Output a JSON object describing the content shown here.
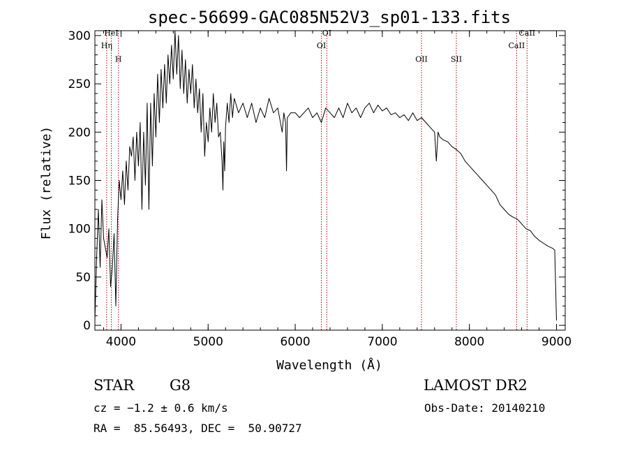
{
  "chart_data": {
    "type": "line",
    "title": "spec-56699-GAC085N52V3_sp01-133.fits",
    "xlabel": "Wavelength (Å)",
    "ylabel": "Flux (relative)",
    "xlim": [
      3700,
      9100
    ],
    "ylim": [
      -5,
      305
    ],
    "xticks": [
      4000,
      5000,
      6000,
      7000,
      8000,
      9000
    ],
    "yticks": [
      0,
      50,
      100,
      150,
      200,
      250,
      300
    ],
    "grid": false,
    "series": [
      {
        "x": [
          3700,
          3720,
          3740,
          3760,
          3780,
          3800,
          3820,
          3840,
          3860,
          3880,
          3900,
          3920,
          3940,
          3960,
          3980,
          4000,
          4020,
          4040,
          4060,
          4080,
          4100,
          4120,
          4140,
          4160,
          4180,
          4200,
          4220,
          4240,
          4260,
          4280,
          4300,
          4320,
          4340,
          4360,
          4380,
          4400,
          4420,
          4440,
          4460,
          4480,
          4500,
          4520,
          4540,
          4560,
          4580,
          4600,
          4620,
          4640,
          4660,
          4680,
          4700,
          4720,
          4740,
          4760,
          4780,
          4800,
          4820,
          4840,
          4860,
          4880,
          4900,
          4920,
          4940,
          4960,
          4980,
          5000,
          5020,
          5040,
          5060,
          5080,
          5100,
          5120,
          5140,
          5160,
          5170,
          5180,
          5190,
          5200,
          5220,
          5240,
          5260,
          5280,
          5300,
          5350,
          5400,
          5450,
          5500,
          5550,
          5600,
          5650,
          5700,
          5750,
          5800,
          5850,
          5870,
          5890,
          5900,
          5910,
          5950,
          6000,
          6050,
          6100,
          6150,
          6200,
          6250,
          6300,
          6350,
          6400,
          6450,
          6500,
          6550,
          6600,
          6650,
          6700,
          6750,
          6800,
          6850,
          6900,
          6950,
          7000,
          7050,
          7100,
          7150,
          7200,
          7250,
          7300,
          7350,
          7400,
          7450,
          7500,
          7550,
          7600,
          7620,
          7640,
          7660,
          7700,
          7750,
          7800,
          7850,
          7900,
          7950,
          8000,
          8050,
          8100,
          8150,
          8200,
          8250,
          8300,
          8350,
          8400,
          8450,
          8500,
          8550,
          8600,
          8650,
          8700,
          8750,
          8800,
          8850,
          8900,
          8950,
          8980,
          9000
        ],
        "y": [
          5,
          70,
          120,
          60,
          130,
          90,
          80,
          70,
          100,
          40,
          60,
          95,
          20,
          110,
          150,
          130,
          160,
          125,
          170,
          140,
          185,
          175,
          195,
          150,
          200,
          165,
          210,
          120,
          200,
          145,
          230,
          120,
          230,
          165,
          240,
          195,
          260,
          210,
          265,
          225,
          270,
          230,
          280,
          250,
          290,
          255,
          305,
          260,
          300,
          245,
          285,
          240,
          275,
          230,
          265,
          240,
          270,
          225,
          255,
          220,
          245,
          200,
          240,
          175,
          210,
          190,
          225,
          200,
          240,
          210,
          230,
          195,
          200,
          170,
          140,
          190,
          160,
          205,
          230,
          210,
          240,
          215,
          235,
          220,
          230,
          215,
          230,
          210,
          225,
          215,
          235,
          220,
          225,
          200,
          220,
          210,
          160,
          215,
          220,
          220,
          215,
          220,
          225,
          215,
          220,
          210,
          225,
          220,
          215,
          225,
          215,
          230,
          220,
          225,
          215,
          225,
          230,
          220,
          228,
          222,
          225,
          218,
          220,
          215,
          218,
          212,
          220,
          212,
          215,
          210,
          205,
          200,
          170,
          200,
          195,
          192,
          190,
          185,
          182,
          178,
          170,
          165,
          160,
          155,
          150,
          145,
          140,
          135,
          125,
          120,
          115,
          112,
          110,
          105,
          100,
          98,
          92,
          88,
          85,
          82,
          80,
          78,
          5
        ]
      }
    ],
    "spectral_lines": [
      {
        "label": "HeI",
        "wavelength": 3888,
        "label_y": 300
      },
      {
        "label": "Hη",
        "wavelength": 3835,
        "label_y": 287
      },
      {
        "label": "H",
        "wavelength": 3970,
        "label_y": 273
      },
      {
        "label": "OI",
        "wavelength": 6363,
        "label_y": 300
      },
      {
        "label": "OI",
        "wavelength": 6300,
        "label_y": 287
      },
      {
        "label": "OII",
        "wavelength": 7450,
        "label_y": 273
      },
      {
        "label": "SII",
        "wavelength": 7850,
        "label_y": 273
      },
      {
        "label": "CaII",
        "wavelength": 8662,
        "label_y": 300
      },
      {
        "label": "CaII",
        "wavelength": 8542,
        "label_y": 287
      }
    ],
    "line_color": "#000000",
    "marker_color": "#aa0000"
  },
  "info": {
    "object_type": "STAR",
    "subclass": "G8",
    "survey": "LAMOST DR2",
    "cz": "cz = −1.2 ± 0.6 km/s",
    "obs_date": "Obs-Date: 20140210",
    "coords": "RA =  85.56493, DEC =  50.90727"
  }
}
